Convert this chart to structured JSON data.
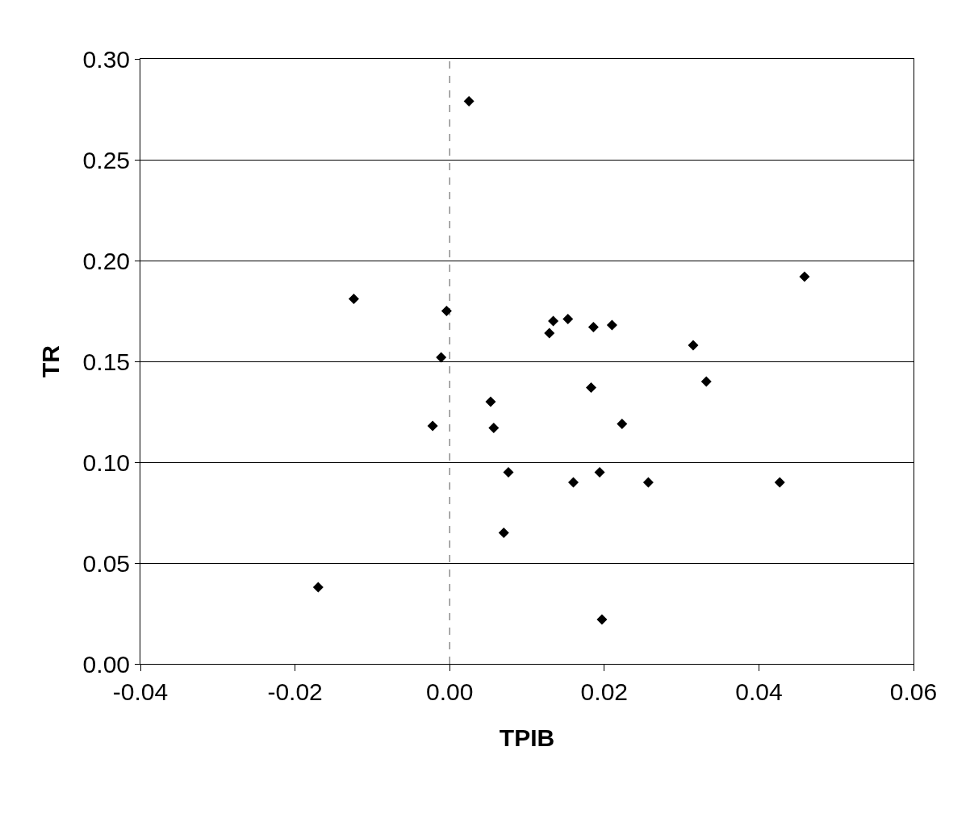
{
  "chart_data": {
    "type": "scatter",
    "xlabel": "TPIB",
    "ylabel": "TR",
    "x": [
      0.0025,
      -0.0124,
      -0.0004,
      -0.0011,
      -0.0022,
      -0.017,
      0.0053,
      0.0057,
      0.0076,
      0.007,
      0.0134,
      0.0129,
      0.0153,
      0.0186,
      0.021,
      0.0315,
      0.0183,
      0.0332,
      0.0223,
      0.016,
      0.0194,
      0.0257,
      0.0427,
      0.0197,
      0.0459
    ],
    "series": [
      {
        "color": "#000000",
        "values": [
          0.279,
          0.181,
          0.175,
          0.152,
          0.118,
          0.038,
          0.13,
          0.117,
          0.095,
          0.065,
          0.17,
          0.164,
          0.171,
          0.167,
          0.168,
          0.158,
          0.137,
          0.14,
          0.119,
          0.09,
          0.095,
          0.09,
          0.09,
          0.022,
          0.192
        ]
      }
    ],
    "xlim": [
      -0.04,
      0.06
    ],
    "xticks": [
      {
        "value": -0.04,
        "label": "-0.04"
      },
      {
        "value": -0.02,
        "label": "-0.02"
      },
      {
        "value": 0,
        "label": "0.00"
      },
      {
        "value": 0.02,
        "label": "0.02"
      },
      {
        "value": 0.04,
        "label": "0.04"
      },
      {
        "value": 0.06,
        "label": "0.06"
      }
    ],
    "ylim": [
      0,
      0.3
    ],
    "yticks": [
      {
        "value": 0,
        "label": "0.00"
      },
      {
        "value": 0.05,
        "label": "0.05"
      },
      {
        "value": 0.1,
        "label": "0.10"
      },
      {
        "value": 0.15,
        "label": "0.15"
      },
      {
        "value": 0.2,
        "label": "0.20"
      },
      {
        "value": 0.25,
        "label": "0.25"
      },
      {
        "value": 0.3,
        "label": "0.30"
      }
    ],
    "grid": "y",
    "marker": "diamond",
    "ref_lines": [
      {
        "axis": "x",
        "value": 0,
        "color": "#555555",
        "line_style": "dashed"
      }
    ]
  }
}
